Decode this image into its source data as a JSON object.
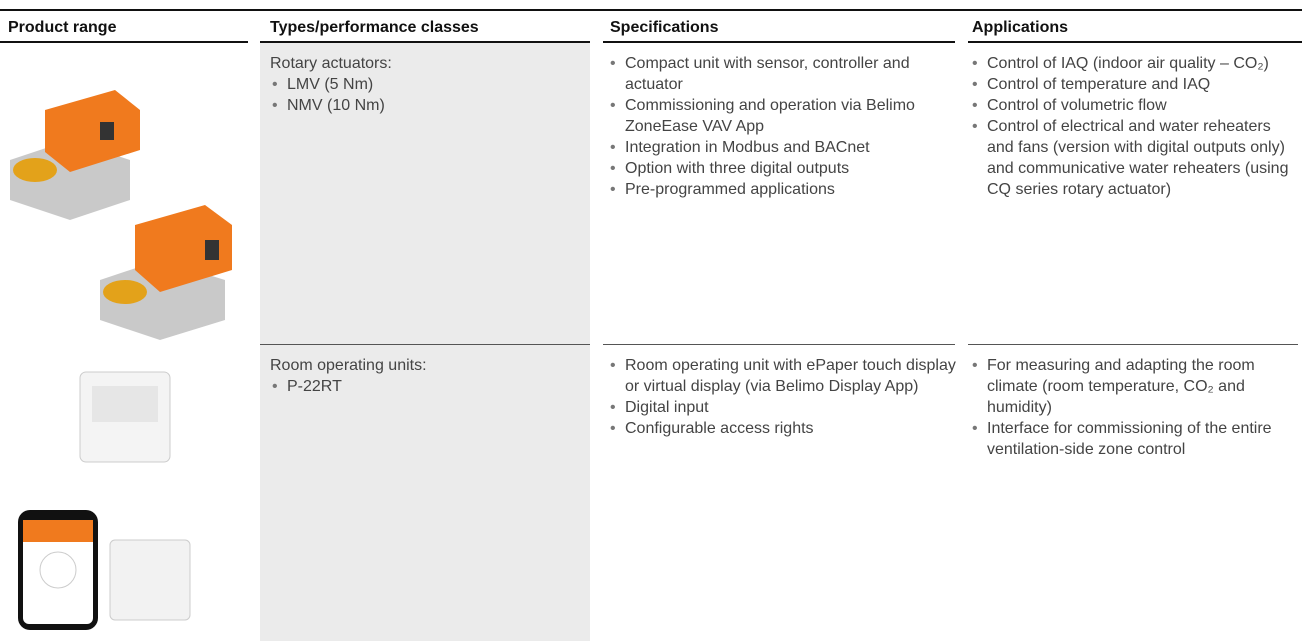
{
  "table": {
    "header": [
      "Product range",
      "Types/performance classes",
      "Specifications",
      "Applications"
    ],
    "rows": [
      {
        "types_title": "Rotary actuators:",
        "types": [
          "LMV (5 Nm)",
          "NMV (10 Nm)"
        ],
        "specifications": [
          "Compact unit with sensor, controller and actuator",
          "Commissioning and operation via Belimo ZoneEase VAV App",
          "Integration in Modbus and BACnet",
          "Option with three digital outputs",
          "Pre-programmed applications"
        ],
        "applications": [
          "Control of IAQ (indoor air quality – CO₂)",
          "Control of temperature and IAQ",
          "Control of volumetric flow",
          "Control of electrical and water reheaters and fans (version with digital outputs only) and communicative water reheaters (using CQ series rotary actuator)"
        ]
      },
      {
        "types_title": "Room operating units:",
        "types": [
          "P-22RT"
        ],
        "specifications": [
          "Room operating unit with ePaper touch display or virtual display (via Belimo Display App)",
          "Digital input",
          "Configurable access rights"
        ],
        "applications": [
          "For measuring and adapting the room climate (room temperature, CO₂ and humidity)",
          "Interface for commissioning of the entire ventilation-side zone control"
        ]
      }
    ]
  }
}
